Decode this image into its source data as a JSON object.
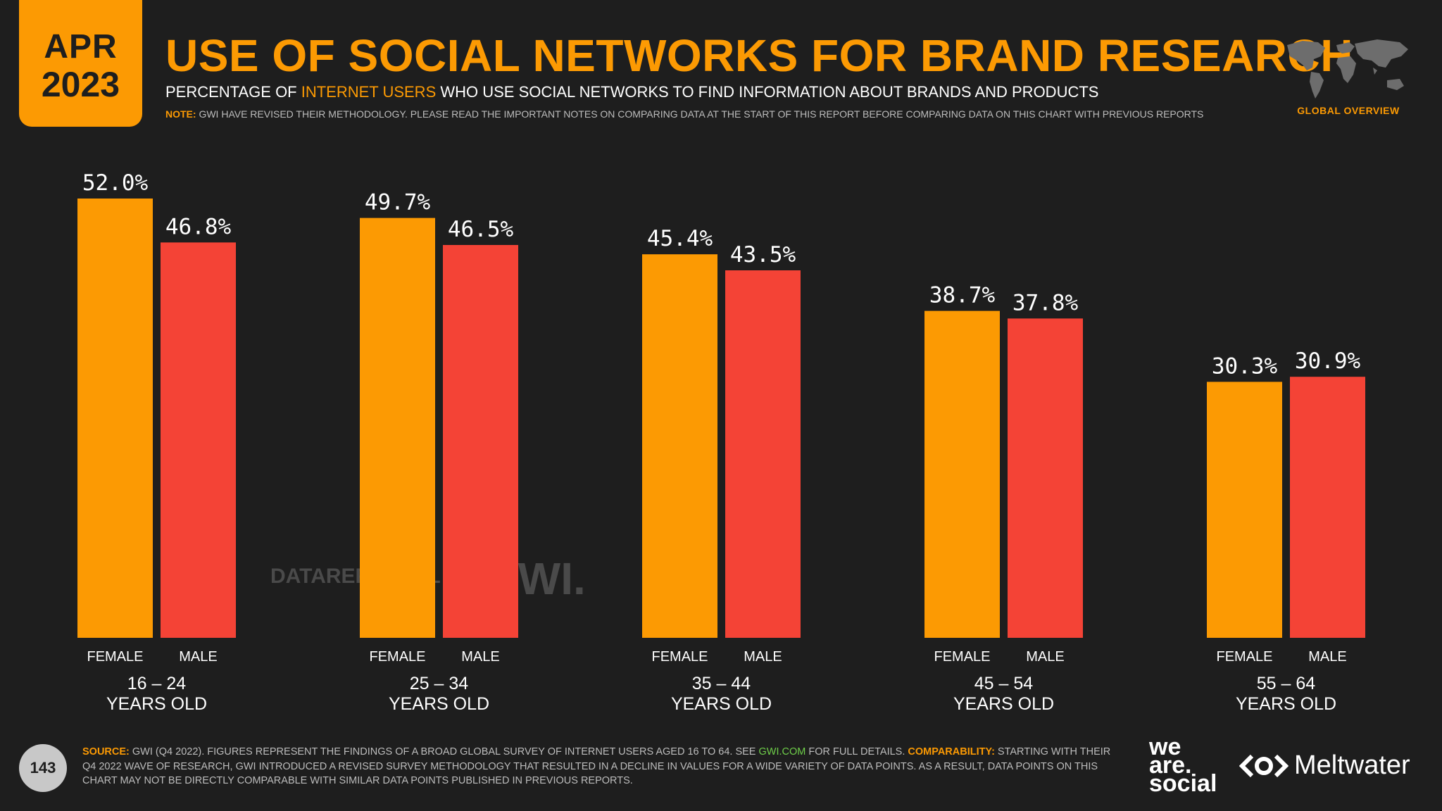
{
  "header": {
    "month": "APR",
    "year": "2023",
    "title": "USE OF SOCIAL NETWORKS FOR BRAND RESEARCH",
    "subtitle_pre": "PERCENTAGE OF ",
    "subtitle_highlight": "INTERNET USERS",
    "subtitle_post": " WHO USE SOCIAL NETWORKS TO FIND INFORMATION ABOUT BRANDS AND PRODUCTS",
    "note_label": "NOTE:",
    "note_text": " GWI HAVE REVISED THEIR METHODOLOGY. PLEASE READ THE IMPORTANT NOTES ON COMPARING DATA AT THE START OF THIS REPORT BEFORE COMPARING DATA ON THIS CHART WITH PREVIOUS REPORTS",
    "region_label": "GLOBAL OVERVIEW"
  },
  "colors": {
    "female": "#fc9a03",
    "male": "#f44336",
    "background": "#1e1e1e",
    "accent": "#fc9a03"
  },
  "chart_data": {
    "type": "bar",
    "title": "USE OF SOCIAL NETWORKS FOR BRAND RESEARCH",
    "categories": [
      "16 – 24",
      "25 – 34",
      "35 – 44",
      "45 – 54",
      "55 – 64"
    ],
    "category_suffix": "YEARS OLD",
    "series": [
      {
        "name": "FEMALE",
        "values": [
          52.0,
          49.7,
          45.4,
          38.7,
          30.3
        ]
      },
      {
        "name": "MALE",
        "values": [
          46.8,
          46.5,
          43.5,
          37.8,
          30.9
        ]
      }
    ],
    "value_format": "percent_1dp",
    "ylim": [
      0,
      52.0
    ],
    "grid": false,
    "xlabel": "",
    "ylabel": ""
  },
  "watermarks": {
    "datareportal": "DATAREPORTAL",
    "gwi": "GWI."
  },
  "footer": {
    "page_number": "143",
    "source_label": "SOURCE:",
    "source_text_1": " GWI (Q4 2022). FIGURES REPRESENT THE FINDINGS OF A BROAD GLOBAL SURVEY OF INTERNET USERS AGED 16 TO 64. SEE ",
    "source_link": "GWI.COM",
    "source_text_2": " FOR FULL DETAILS. ",
    "comparability_label": "COMPARABILITY:",
    "comparability_text": " STARTING WITH THEIR Q4 2022 WAVE OF RESEARCH, GWI INTRODUCED A REVISED SURVEY METHODOLOGY THAT RESULTED IN A DECLINE IN VALUES FOR A WIDE VARIETY OF DATA POINTS. AS A RESULT, DATA POINTS ON THIS CHART MAY NOT BE DIRECTLY COMPARABLE WITH SIMILAR DATA POINTS PUBLISHED IN PREVIOUS REPORTS.",
    "brand_we": "we",
    "brand_are": "are.",
    "brand_social": "social",
    "brand_meltwater": "Meltwater"
  }
}
